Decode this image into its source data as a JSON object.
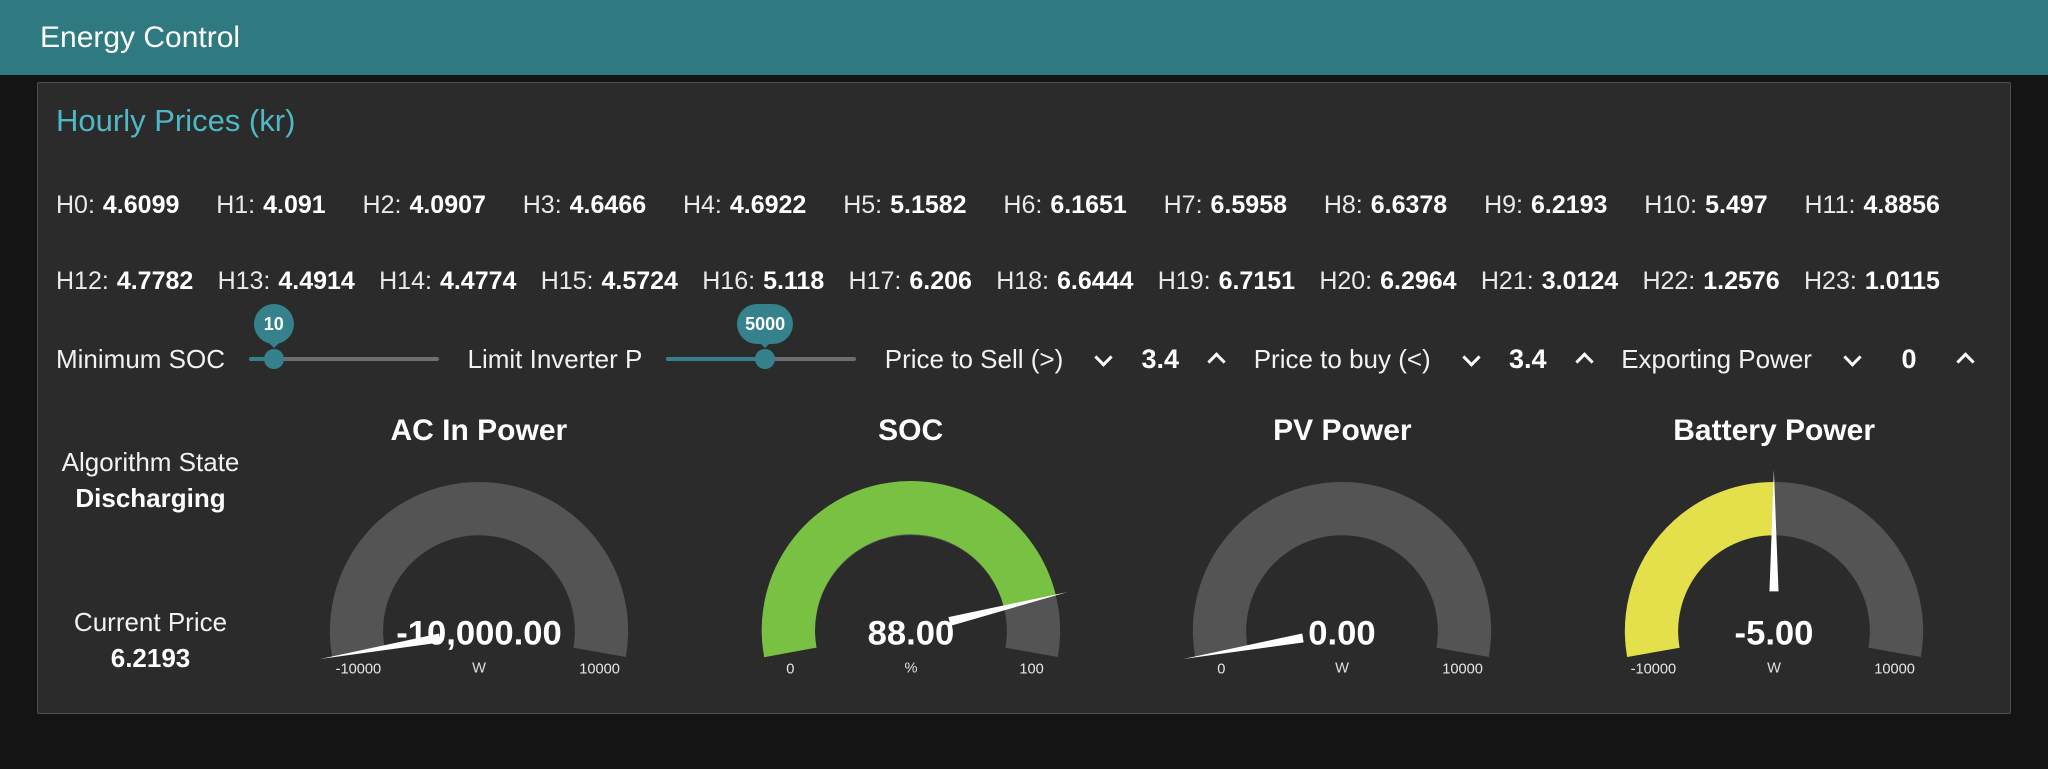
{
  "colors": {
    "header_bg": "#2f7a81",
    "accent": "#4fb8c6",
    "slider": "#35828c",
    "gauge_track": "#545454",
    "soc_green": "#79c143",
    "battery_yellow": "#e3e04b"
  },
  "header": {
    "title": "Energy Control"
  },
  "panel": {
    "title": "Hourly Prices (kr)"
  },
  "hourly_prices": {
    "row1": [
      {
        "label": "H0:",
        "value": "4.6099"
      },
      {
        "label": "H1:",
        "value": "4.091"
      },
      {
        "label": "H2:",
        "value": "4.0907"
      },
      {
        "label": "H3:",
        "value": "4.6466"
      },
      {
        "label": "H4:",
        "value": "4.6922"
      },
      {
        "label": "H5:",
        "value": "5.1582"
      },
      {
        "label": "H6:",
        "value": "6.1651"
      },
      {
        "label": "H7:",
        "value": "6.5958"
      },
      {
        "label": "H8:",
        "value": "6.6378"
      },
      {
        "label": "H9:",
        "value": "6.2193"
      },
      {
        "label": "H10:",
        "value": "5.497"
      },
      {
        "label": "H11:",
        "value": "4.8856"
      }
    ],
    "row2": [
      {
        "label": "H12:",
        "value": "4.7782"
      },
      {
        "label": "H13:",
        "value": "4.4914"
      },
      {
        "label": "H14:",
        "value": "4.4774"
      },
      {
        "label": "H15:",
        "value": "4.5724"
      },
      {
        "label": "H16:",
        "value": "5.118"
      },
      {
        "label": "H17:",
        "value": "6.206"
      },
      {
        "label": "H18:",
        "value": "6.6444"
      },
      {
        "label": "H19:",
        "value": "6.7151"
      },
      {
        "label": "H20:",
        "value": "6.2964"
      },
      {
        "label": "H21:",
        "value": "3.0124"
      },
      {
        "label": "H22:",
        "value": "1.2576"
      },
      {
        "label": "H23:",
        "value": "1.0115"
      }
    ]
  },
  "controls": {
    "minimum_soc": {
      "label": "Minimum SOC",
      "value": "10",
      "percent": 13
    },
    "limit_inverter_p": {
      "label": "Limit Inverter P",
      "value": "5000",
      "percent": 52
    },
    "price_to_sell": {
      "label": "Price to Sell (>)",
      "value": "3.4"
    },
    "price_to_buy": {
      "label": "Price to buy (<)",
      "value": "3.4"
    },
    "exporting_power": {
      "label": "Exporting Power",
      "value": "0"
    }
  },
  "status": {
    "algorithm_state_label": "Algorithm State",
    "algorithm_state_value": "Discharging",
    "current_price_label": "Current Price",
    "current_price_value": "6.2193"
  },
  "gauges": [
    {
      "title": "AC In Power",
      "value": -10000,
      "min": -10000,
      "max": 10000,
      "display": "-10,000.00",
      "unit": "W",
      "min_label": "-10000",
      "max_label": "10000",
      "color": "#545454"
    },
    {
      "title": "SOC",
      "value": 88,
      "min": 0,
      "max": 100,
      "display": "88.00",
      "unit": "%",
      "min_label": "0",
      "max_label": "100",
      "color": "#79c143"
    },
    {
      "title": "PV Power",
      "value": 0,
      "min": 0,
      "max": 10000,
      "display": "0.00",
      "unit": "W",
      "min_label": "0",
      "max_label": "10000",
      "color": "#545454"
    },
    {
      "title": "Battery Power",
      "value": -5,
      "min": -10000,
      "max": 10000,
      "display": "-5.00",
      "unit": "W",
      "min_label": "-10000",
      "max_label": "10000",
      "color": "#e3e04b"
    }
  ]
}
